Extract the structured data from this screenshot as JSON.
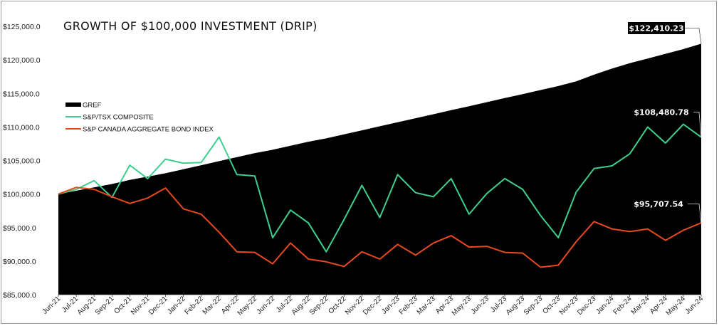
{
  "chart_data": {
    "type": "line",
    "title": "GROWTH OF $100,000 INVESTMENT (DRIP)",
    "xlabel": "",
    "ylabel": "",
    "ylim": [
      85000,
      125000
    ],
    "yticks": [
      "$85,000.0",
      "$90,000.0",
      "$95,000.0",
      "$100,000.0",
      "$105,000.0",
      "$110,000.0",
      "$115,000.0",
      "$120,000.0",
      "$125,000.0"
    ],
    "ytick_values": [
      85000,
      90000,
      95000,
      100000,
      105000,
      110000,
      115000,
      120000,
      125000
    ],
    "categories": [
      "Jun-21",
      "Jul-21",
      "Aug-21",
      "Sep-21",
      "Oct-21",
      "Nov-21",
      "Dec-21",
      "Jan-22",
      "Feb-22",
      "Mar-22",
      "Apr-22",
      "May-22",
      "Jun-22",
      "Jul-22",
      "Aug-22",
      "Sep-22",
      "Oct-22",
      "Nov-22",
      "Dec-22",
      "Jan-23",
      "Feb-23",
      "Mar-23",
      "Apr-23",
      "May-23",
      "Jun-23",
      "Jul-23",
      "Aug-23",
      "Sep-23",
      "Oct-23",
      "Nov-23",
      "Dec-23",
      "Jan-24",
      "Feb-24",
      "Mar-24",
      "Apr-24",
      "May-24",
      "Jun-24"
    ],
    "grid": false,
    "legend_position": "left",
    "series": [
      {
        "name": "GREF",
        "kind": "area",
        "color": "#000000",
        "values": [
          100000,
          100500,
          101000,
          101500,
          102100,
          102600,
          103100,
          103700,
          104300,
          104900,
          105500,
          106100,
          106600,
          107200,
          107800,
          108300,
          108900,
          109500,
          110100,
          110700,
          111300,
          111900,
          112500,
          113100,
          113700,
          114300,
          114900,
          115500,
          116100,
          116800,
          117800,
          118700,
          119500,
          120200,
          120900,
          121600,
          122410.23
        ]
      },
      {
        "name": "S&P/TSX COMPOSITE",
        "kind": "line",
        "color": "#3ecf8e",
        "values": [
          100000,
          100700,
          102000,
          99500,
          104300,
          102300,
          105200,
          104600,
          104700,
          108500,
          102900,
          102700,
          93500,
          97600,
          95700,
          91400,
          96200,
          101300,
          96500,
          102900,
          100200,
          99600,
          102300,
          97000,
          100100,
          102300,
          100700,
          96800,
          93500,
          100300,
          103800,
          104200,
          106000,
          110000,
          107600,
          110400,
          108480.78
        ]
      },
      {
        "name": "S&P CANADA AGGREGATE BOND INDEX",
        "kind": "line",
        "color": "#e8491d",
        "values": [
          100000,
          101000,
          100700,
          99600,
          98600,
          99400,
          100900,
          97800,
          97000,
          94300,
          91400,
          91300,
          89600,
          92700,
          90300,
          89900,
          89200,
          91400,
          90300,
          92500,
          90900,
          92700,
          93800,
          92100,
          92200,
          91300,
          91200,
          89100,
          89400,
          92900,
          95900,
          94800,
          94400,
          94800,
          93100,
          94600,
          95707.54
        ]
      }
    ],
    "callouts": [
      {
        "label": "$122,410.23",
        "series": "GREF",
        "style": "dark"
      },
      {
        "label": "$108,480.78",
        "series": "S&P/TSX COMPOSITE",
        "style": "light"
      },
      {
        "label": "$95,707.54",
        "series": "S&P CANADA AGGREGATE BOND INDEX",
        "style": "light"
      }
    ]
  }
}
